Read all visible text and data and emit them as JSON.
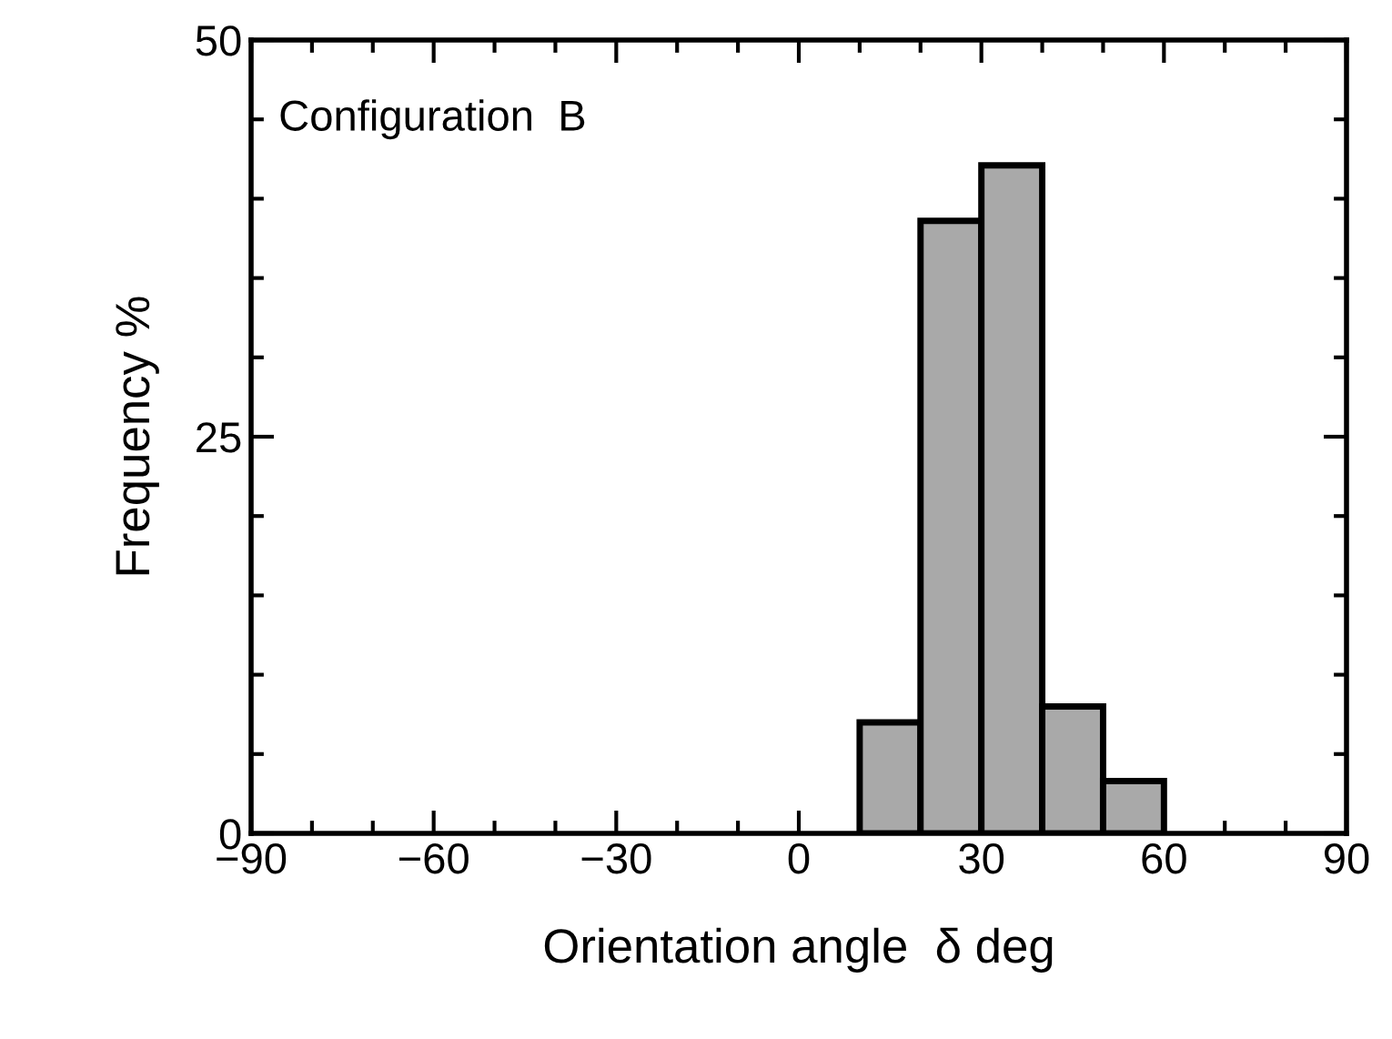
{
  "chart_data": {
    "type": "histogram",
    "bins": [
      -90,
      -80,
      -70,
      -60,
      -50,
      -40,
      -30,
      -20,
      -10,
      0,
      10,
      20,
      30,
      40,
      50,
      60,
      70,
      80,
      90
    ],
    "values": [
      0,
      0,
      0,
      0,
      0,
      0,
      0,
      0,
      0,
      0,
      7,
      38.6,
      42.1,
      8,
      3.3,
      0,
      0,
      0
    ],
    "color": "#a9a9a9",
    "xlabel": "Orientation angle  δ deg",
    "ylabel": "Frequency %",
    "annotations": [
      "Configuration  B"
    ],
    "xlim": [
      -90,
      90
    ],
    "xticks": [
      -90,
      -60,
      -30,
      0,
      30,
      60,
      90
    ],
    "ylim": [
      0,
      50
    ],
    "yticks": [
      0,
      25,
      50
    ],
    "grid": false
  }
}
